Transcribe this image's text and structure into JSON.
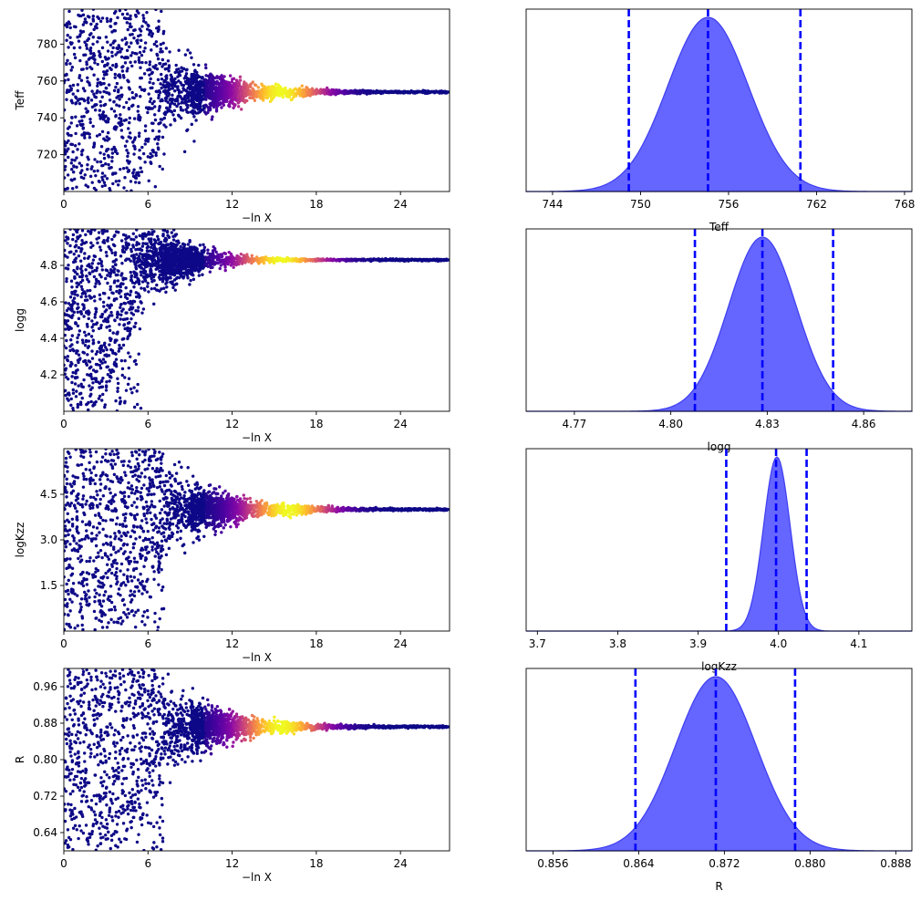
{
  "chart_data": [
    {
      "type": "scatter",
      "ylabel": "Teff",
      "xlabel": "−ln X",
      "xlim": [
        0,
        27.5
      ],
      "ylim": [
        700,
        799
      ],
      "xticks": [
        "0",
        "6",
        "12",
        "18",
        "24"
      ],
      "yticks": [
        "720",
        "740",
        "760",
        "780"
      ],
      "ytick_values": [
        720,
        740,
        760,
        780
      ],
      "converge_value": 754,
      "converge_at": 13,
      "peak_density_x": 15.5,
      "colormap": "plasma"
    },
    {
      "type": "area",
      "xlabel": "Teff",
      "xlim": [
        742.2,
        768.5
      ],
      "xticks": [
        "744",
        "750",
        "756",
        "762",
        "768"
      ],
      "xtick_values": [
        744,
        750,
        756,
        762,
        768
      ],
      "posterior_mean": 754.6,
      "posterior_sd": 2.75,
      "quantile_lines": [
        749.2,
        754.6,
        760.9
      ]
    },
    {
      "type": "scatter",
      "ylabel": "logg",
      "xlabel": "−ln X",
      "xlim": [
        0,
        27.5
      ],
      "ylim": [
        4.0,
        5.0
      ],
      "xticks": [
        "0",
        "6",
        "12",
        "18",
        "24"
      ],
      "yticks": [
        "4.2",
        "4.4",
        "4.6",
        "4.8"
      ],
      "ytick_values": [
        4.2,
        4.4,
        4.6,
        4.8
      ],
      "converge_value": 4.83,
      "converge_at": 10,
      "peak_density_x": 15.5,
      "colormap": "plasma"
    },
    {
      "type": "area",
      "xlabel": "logg",
      "xlim": [
        4.755,
        4.875
      ],
      "xticks": [
        "4.77",
        "4.80",
        "4.83",
        "4.86"
      ],
      "xtick_values": [
        4.77,
        4.8,
        4.83,
        4.86
      ],
      "posterior_mean": 4.8285,
      "posterior_sd": 0.0105,
      "quantile_lines": [
        4.8075,
        4.8285,
        4.8505
      ]
    },
    {
      "type": "scatter",
      "ylabel": "logKzz",
      "xlabel": "−ln X",
      "xlim": [
        0,
        27.5
      ],
      "ylim": [
        0.0,
        6.0
      ],
      "xticks": [
        "0",
        "6",
        "12",
        "18",
        "24"
      ],
      "yticks": [
        "1.5",
        "3.0",
        "4.5"
      ],
      "ytick_values": [
        1.5,
        3.0,
        4.5
      ],
      "converge_value": 4.0,
      "converge_at": 13,
      "peak_density_x": 16,
      "colormap": "plasma"
    },
    {
      "type": "area",
      "xlabel": "logKzz",
      "xlim": [
        3.686,
        4.166
      ],
      "xticks": [
        "3.7",
        "3.8",
        "3.9",
        "4.0",
        "4.1"
      ],
      "xtick_values": [
        3.7,
        3.8,
        3.9,
        4.0,
        4.1
      ],
      "posterior_mean": 3.998,
      "posterior_sd": 0.0165,
      "quantile_lines": [
        3.935,
        3.997,
        4.035
      ]
    },
    {
      "type": "scatter",
      "ylabel": "R",
      "xlabel": "−ln X",
      "xlim": [
        0,
        27.5
      ],
      "ylim": [
        0.6,
        1.0
      ],
      "xticks": [
        "0",
        "6",
        "12",
        "18",
        "24"
      ],
      "yticks": [
        "0.64",
        "0.72",
        "0.80",
        "0.88",
        "0.96"
      ],
      "ytick_values": [
        0.64,
        0.72,
        0.8,
        0.88,
        0.96
      ],
      "converge_value": 0.872,
      "converge_at": 13,
      "peak_density_x": 15.5,
      "colormap": "plasma"
    },
    {
      "type": "area",
      "xlabel": "R",
      "xlim": [
        0.8535,
        0.8895
      ],
      "xticks": [
        "0.856",
        "0.864",
        "0.872",
        "0.880",
        "0.888"
      ],
      "xtick_values": [
        0.856,
        0.864,
        0.872,
        0.88,
        0.888
      ],
      "posterior_mean": 0.8712,
      "posterior_sd": 0.00375,
      "quantile_lines": [
        0.8637,
        0.8712,
        0.8786
      ]
    }
  ],
  "colors": {
    "trace_low": "#0d0887",
    "posterior_fill": "#6565ff",
    "posterior_edge": "#3e3ef0",
    "quantile_line": "#0000ff"
  }
}
